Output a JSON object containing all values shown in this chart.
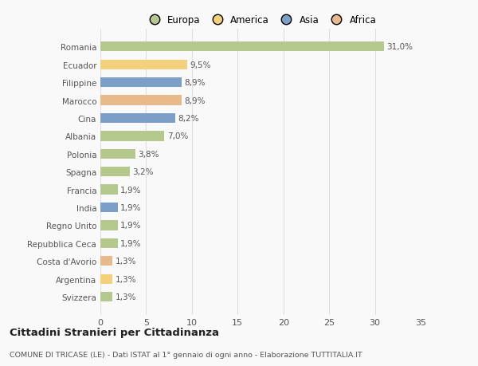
{
  "categories": [
    "Romania",
    "Ecuador",
    "Filippine",
    "Marocco",
    "Cina",
    "Albania",
    "Polonia",
    "Spagna",
    "Francia",
    "India",
    "Regno Unito",
    "Repubblica Ceca",
    "Costa d'Avorio",
    "Argentina",
    "Svizzera"
  ],
  "values": [
    31.0,
    9.5,
    8.9,
    8.9,
    8.2,
    7.0,
    3.8,
    3.2,
    1.9,
    1.9,
    1.9,
    1.9,
    1.3,
    1.3,
    1.3
  ],
  "labels": [
    "31,0%",
    "9,5%",
    "8,9%",
    "8,9%",
    "8,2%",
    "7,0%",
    "3,8%",
    "3,2%",
    "1,9%",
    "1,9%",
    "1,9%",
    "1,9%",
    "1,3%",
    "1,3%",
    "1,3%"
  ],
  "colors": [
    "#b5c98e",
    "#f5d07a",
    "#7b9fc7",
    "#e8b98a",
    "#7b9fc7",
    "#b5c98e",
    "#b5c98e",
    "#b5c98e",
    "#b5c98e",
    "#7b9fc7",
    "#b5c98e",
    "#b5c98e",
    "#e8b98a",
    "#f5d07a",
    "#b5c98e"
  ],
  "legend_labels": [
    "Europa",
    "America",
    "Asia",
    "Africa"
  ],
  "legend_colors": [
    "#b5c98e",
    "#f5d07a",
    "#7b9fc7",
    "#e8b98a"
  ],
  "title": "Cittadini Stranieri per Cittadinanza",
  "subtitle": "COMUNE DI TRICASE (LE) - Dati ISTAT al 1° gennaio di ogni anno - Elaborazione TUTTITALIA.IT",
  "xlim": [
    0,
    35
  ],
  "xticks": [
    0,
    5,
    10,
    15,
    20,
    25,
    30,
    35
  ],
  "bg_color": "#f9f9f9",
  "grid_color": "#e0e0e0",
  "bar_height": 0.55,
  "label_fontsize": 7.5,
  "ytick_fontsize": 7.5,
  "xtick_fontsize": 8
}
